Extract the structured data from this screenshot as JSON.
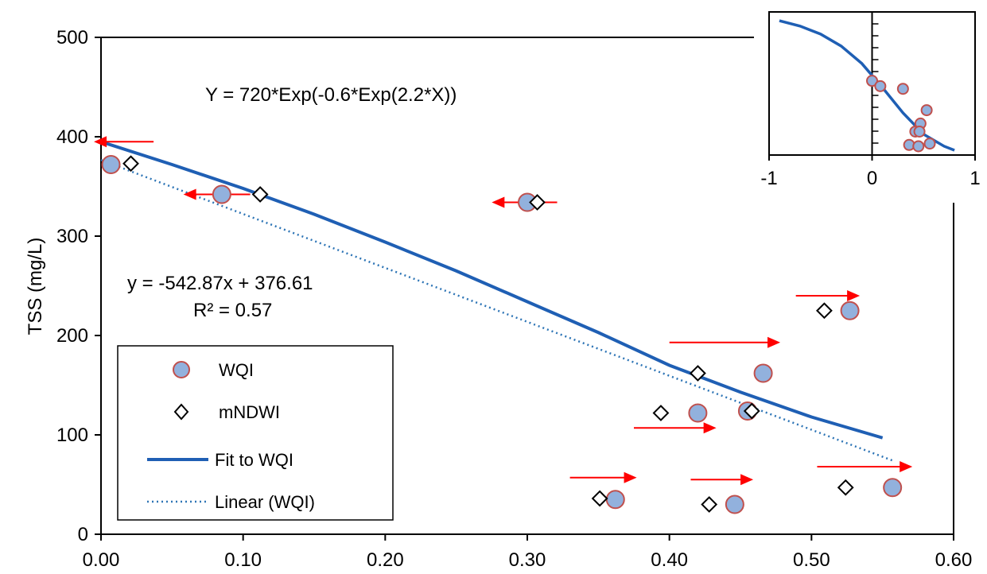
{
  "chart_data": [
    {
      "type": "scatter",
      "ylabel": "TSS (mg/L)",
      "xlim": [
        0,
        0.6
      ],
      "ylim": [
        0,
        500
      ],
      "x_ticks": [
        "0.00",
        "0.10",
        "0.20",
        "0.30",
        "0.40",
        "0.50",
        "0.60"
      ],
      "y_ticks": [
        "0",
        "100",
        "200",
        "300",
        "400",
        "500"
      ],
      "grid": false,
      "legend_position": "bottom-left",
      "annotations": {
        "exp_equation": "Y = 720*Exp(-0.6*Exp(2.2*X))",
        "linear_equation": "y = -542.87x + 376.61",
        "r_squared": "R² = 0.57"
      },
      "legend": [
        "WQI",
        "mNDWI",
        "Fit to WQI",
        "Linear (WQI)"
      ],
      "series": [
        {
          "name": "WQI",
          "marker": "circle",
          "color": "#92b1dd",
          "edge_color": "#c0504d",
          "points": [
            {
              "x": 0.007,
              "y": 372
            },
            {
              "x": 0.085,
              "y": 342
            },
            {
              "x": 0.3,
              "y": 334
            },
            {
              "x": 0.527,
              "y": 225
            },
            {
              "x": 0.466,
              "y": 162
            },
            {
              "x": 0.42,
              "y": 122
            },
            {
              "x": 0.455,
              "y": 124
            },
            {
              "x": 0.362,
              "y": 35
            },
            {
              "x": 0.446,
              "y": 30
            },
            {
              "x": 0.557,
              "y": 47
            }
          ]
        },
        {
          "name": "mNDWI",
          "marker": "diamond",
          "color": "#ffffff",
          "edge_color": "#000000",
          "points": [
            {
              "x": 0.021,
              "y": 373
            },
            {
              "x": 0.112,
              "y": 342
            },
            {
              "x": 0.307,
              "y": 334
            },
            {
              "x": 0.509,
              "y": 225
            },
            {
              "x": 0.42,
              "y": 162
            },
            {
              "x": 0.394,
              "y": 122
            },
            {
              "x": 0.458,
              "y": 124
            },
            {
              "x": 0.351,
              "y": 36
            },
            {
              "x": 0.428,
              "y": 30
            },
            {
              "x": 0.524,
              "y": 47
            }
          ]
        },
        {
          "name": "Fit to WQI",
          "type": "line",
          "color": "#1f5fb4",
          "x": [
            0.0,
            0.05,
            0.1,
            0.15,
            0.2,
            0.25,
            0.3,
            0.35,
            0.4,
            0.45,
            0.5,
            0.55
          ],
          "y": [
            395,
            372,
            348,
            322,
            294,
            265,
            234,
            203,
            170,
            143,
            118,
            97
          ]
        },
        {
          "name": "Linear (WQI)",
          "type": "line",
          "style": "dotted",
          "color": "#2e75b6",
          "x": [
            0.0,
            0.557
          ],
          "y": [
            376.61,
            74.2
          ]
        }
      ],
      "arrows": [
        {
          "from_x": 0.037,
          "to_x": -0.005,
          "y": 395,
          "color": "#ff0000"
        },
        {
          "from_x": 0.105,
          "to_x": 0.058,
          "y": 342,
          "color": "#ff0000"
        },
        {
          "from_x": 0.321,
          "to_x": 0.275,
          "y": 334,
          "color": "#ff0000"
        },
        {
          "from_x": 0.489,
          "to_x": 0.534,
          "y": 240,
          "color": "#ff0000"
        },
        {
          "from_x": 0.4,
          "to_x": 0.478,
          "y": 193,
          "color": "#ff0000"
        },
        {
          "from_x": 0.375,
          "to_x": 0.433,
          "y": 107,
          "color": "#ff0000"
        },
        {
          "from_x": 0.33,
          "to_x": 0.377,
          "y": 57,
          "color": "#ff0000"
        },
        {
          "from_x": 0.415,
          "to_x": 0.459,
          "y": 55,
          "color": "#ff0000"
        },
        {
          "from_x": 0.504,
          "to_x": 0.571,
          "y": 68,
          "color": "#ff0000"
        }
      ]
    },
    {
      "type": "scatter",
      "panel": "inset",
      "xlim": [
        -1,
        1
      ],
      "x_ticks": [
        "-1",
        "0",
        "1"
      ],
      "grid": false,
      "series": [
        {
          "name": "WQI",
          "marker": "circle",
          "color": "#92b1dd",
          "edge_color": "#c0504d",
          "points": [
            {
              "x": 0.0,
              "y": 0.52
            },
            {
              "x": 0.08,
              "y": 0.48
            },
            {
              "x": 0.3,
              "y": 0.46
            },
            {
              "x": 0.53,
              "y": 0.3
            },
            {
              "x": 0.47,
              "y": 0.2
            },
            {
              "x": 0.42,
              "y": 0.14
            },
            {
              "x": 0.46,
              "y": 0.14
            },
            {
              "x": 0.36,
              "y": 0.04
            },
            {
              "x": 0.45,
              "y": 0.03
            },
            {
              "x": 0.56,
              "y": 0.05
            }
          ]
        },
        {
          "name": "Fit to WQI",
          "type": "line",
          "color": "#1f5fb4",
          "x": [
            -0.9,
            -0.7,
            -0.5,
            -0.3,
            -0.1,
            0.1,
            0.3,
            0.5,
            0.7,
            0.8
          ],
          "y": [
            0.97,
            0.93,
            0.87,
            0.78,
            0.65,
            0.47,
            0.28,
            0.12,
            0.03,
            0.0
          ]
        }
      ]
    }
  ]
}
